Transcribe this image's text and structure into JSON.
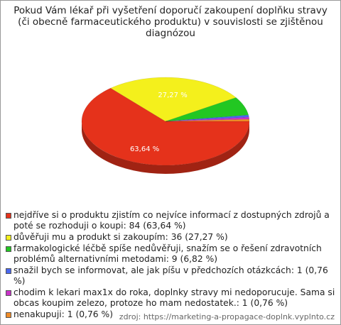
{
  "chart_data": {
    "type": "pie",
    "title": "Pokud Vám lékař při vyšetření doporučí zakoupení doplňku stravy (či obecně farmaceutického produktu) v souvislosti se zjištěnou diagnózou",
    "categories": [
      "nejdříve si o produktu zjistím co nejvíce informací z dostupných zdrojů a poté se rozhoduji o koupi: 84 (63,64 %)",
      "důvěřuji mu a produkt si zakoupím: 36 (27,27 %)",
      "farmakologické léčbě spíše nedůvěřuji, snažím se o řešení zdravotních problémů alternativními metodami: 9 (6,82 %)",
      "snažil bych se informovat, ale jak píšu v předchozích otázkcách: 1 (0,76 %)",
      "chodim k lekari max1x do roka, doplnky stravy mi nedoporucuje. Sama si obcas koupim zelezo, protoze ho mam nedostatek.: 1 (0,76 %)",
      "nenakupuji: 1 (0,76 %)"
    ],
    "values": [
      63.64,
      27.27,
      6.82,
      0.76,
      0.76,
      0.76
    ],
    "value_labels": [
      "63,64 %",
      "27,27 %",
      null,
      null,
      null,
      null
    ],
    "colors": [
      "#e5321b",
      "#f4f01c",
      "#22c722",
      "#4a68f0",
      "#c832c8",
      "#f08c28"
    ],
    "source": "zdroj: https://marketing-a-propagace-doplnk.vyplnto.cz"
  }
}
